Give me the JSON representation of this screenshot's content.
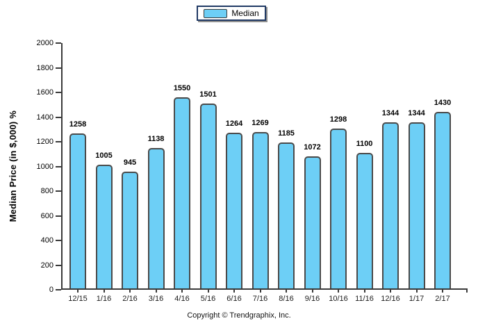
{
  "legend": {
    "label": "Median"
  },
  "footer": {
    "copyright": "Copyright © Trendgraphix, Inc."
  },
  "colors": {
    "bar_fill": "#6DCFF6",
    "bar_border": "#4A4A4A",
    "axis": "#3A3A3A",
    "legend_border": "#1F3864",
    "text": "#000000"
  },
  "chart_data": {
    "type": "bar",
    "title": "",
    "series_name": "Median",
    "categories": [
      "12/15",
      "1/16",
      "2/16",
      "3/16",
      "4/16",
      "5/16",
      "6/16",
      "7/16",
      "8/16",
      "9/16",
      "10/16",
      "11/16",
      "12/16",
      "1/17",
      "2/17"
    ],
    "values": [
      1258,
      1005,
      945,
      1138,
      1550,
      1501,
      1264,
      1269,
      1185,
      1072,
      1298,
      1100,
      1344,
      1344,
      1430
    ],
    "data_labels_shown": true,
    "xlabel": "",
    "ylabel": "Median Price (in $,000) %",
    "ylim": [
      0,
      2000
    ],
    "ytick_step": 200,
    "ytick_labels": [
      "0",
      "200",
      "400",
      "600",
      "800",
      "1000",
      "1200",
      "1400",
      "1600",
      "1800",
      "2000"
    ],
    "grid": false,
    "legend_position": "top-center"
  }
}
